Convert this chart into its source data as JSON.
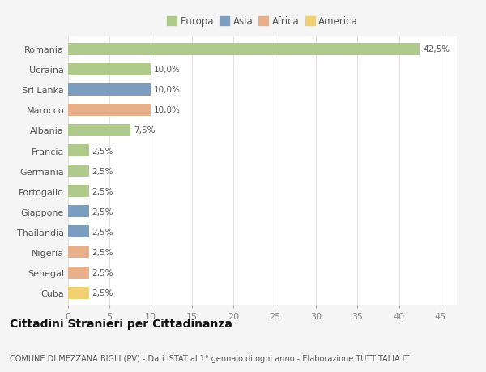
{
  "countries": [
    "Romania",
    "Ucraina",
    "Sri Lanka",
    "Marocco",
    "Albania",
    "Francia",
    "Germania",
    "Portogallo",
    "Giappone",
    "Thailandia",
    "Nigeria",
    "Senegal",
    "Cuba"
  ],
  "values": [
    42.5,
    10.0,
    10.0,
    10.0,
    7.5,
    2.5,
    2.5,
    2.5,
    2.5,
    2.5,
    2.5,
    2.5,
    2.5
  ],
  "labels": [
    "42,5%",
    "10,0%",
    "10,0%",
    "10,0%",
    "7,5%",
    "2,5%",
    "2,5%",
    "2,5%",
    "2,5%",
    "2,5%",
    "2,5%",
    "2,5%",
    "2,5%"
  ],
  "continents": [
    "Europa",
    "Europa",
    "Asia",
    "Africa",
    "Europa",
    "Europa",
    "Europa",
    "Europa",
    "Asia",
    "Asia",
    "Africa",
    "Africa",
    "America"
  ],
  "continent_colors": {
    "Europa": "#aec98a",
    "Asia": "#7b9dc0",
    "Africa": "#e8b08a",
    "America": "#f0d070"
  },
  "legend_order": [
    "Europa",
    "Asia",
    "Africa",
    "America"
  ],
  "xlim": [
    0,
    47
  ],
  "xticks": [
    0,
    5,
    10,
    15,
    20,
    25,
    30,
    35,
    40,
    45
  ],
  "title": "Cittadini Stranieri per Cittadinanza",
  "subtitle": "COMUNE DI MEZZANA BIGLI (PV) - Dati ISTAT al 1° gennaio di ogni anno - Elaborazione TUTTITALIA.IT",
  "bg_color": "#f5f5f5",
  "plot_bg_color": "#ffffff",
  "grid_color": "#e0e0e0",
  "bar_height": 0.6,
  "label_fontsize": 7.5,
  "tick_fontsize": 8,
  "legend_fontsize": 8.5,
  "title_fontsize": 10,
  "subtitle_fontsize": 7
}
